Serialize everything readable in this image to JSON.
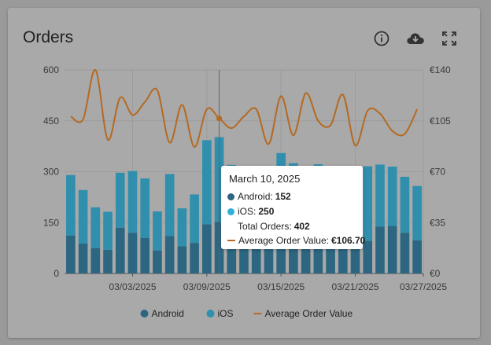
{
  "card": {
    "title": "Orders"
  },
  "icons": {
    "info": "info-icon",
    "download": "cloud-download-icon",
    "fullscreen": "fullscreen-icon"
  },
  "colors": {
    "android": "#2c6680",
    "ios": "#2f8fad",
    "aov": "#b46a22",
    "grid": "#9c9c9c",
    "axis_text": "#3a3a3a"
  },
  "chart_data": {
    "type": "bar",
    "x": [
      "2025-02-26",
      "2025-02-27",
      "2025-02-28",
      "2025-03-01",
      "2025-03-02",
      "2025-03-03",
      "2025-03-04",
      "2025-03-05",
      "2025-03-06",
      "2025-03-07",
      "2025-03-08",
      "2025-03-09",
      "2025-03-10",
      "2025-03-11",
      "2025-03-12",
      "2025-03-13",
      "2025-03-14",
      "2025-03-15",
      "2025-03-16",
      "2025-03-17",
      "2025-03-18",
      "2025-03-19",
      "2025-03-20",
      "2025-03-21",
      "2025-03-22",
      "2025-03-23",
      "2025-03-24",
      "2025-03-25",
      "2025-03-26"
    ],
    "x_tick_labels": [
      "03/03/2025",
      "03/09/2025",
      "03/15/2025",
      "03/21/2025",
      "03/27/2025"
    ],
    "y_left_ticks": [
      "600",
      "450",
      "300",
      "150",
      "0"
    ],
    "y_right_ticks": [
      "€140",
      "€105",
      "€70",
      "€35",
      "€0"
    ],
    "ylim_left": [
      0,
      600
    ],
    "ylim_right": [
      0,
      140
    ],
    "series": [
      {
        "name": "Android",
        "kind": "stacked-bar",
        "values": [
          112,
          88,
          75,
          70,
          135,
          120,
          105,
          68,
          110,
          80,
          90,
          145,
          152,
          110,
          100,
          95,
          92,
          105,
          120,
          98,
          118,
          92,
          104,
          90,
          96,
          138,
          140,
          120,
          98
        ]
      },
      {
        "name": "iOS",
        "kind": "stacked-bar",
        "values": [
          178,
          158,
          120,
          112,
          162,
          182,
          175,
          115,
          183,
          112,
          143,
          248,
          250,
          210,
          192,
          190,
          160,
          250,
          205,
          200,
          204,
          180,
          174,
          185,
          220,
          183,
          175,
          165,
          160
        ]
      },
      {
        "name": "Average Order Value",
        "kind": "line",
        "axis": "right",
        "values": [
          108,
          106,
          140,
          92,
          121,
          109,
          118,
          126,
          90,
          116,
          87,
          113,
          106.7,
          100,
          108,
          113,
          89,
          122,
          95,
          124,
          105,
          102,
          123,
          88,
          112,
          110,
          98,
          96,
          113
        ]
      }
    ],
    "legend": [
      "Android",
      "iOS",
      "Average Order Value"
    ],
    "legend_position": "bottom",
    "grid": true,
    "cursor_index": 12
  },
  "tooltip": {
    "date": "March 10, 2025",
    "android_label": "Android:",
    "android_value": "152",
    "ios_label": "iOS:",
    "ios_value": "250",
    "total_label": "Total Orders:",
    "total_value": "402",
    "aov_label": "Average Order Value:",
    "aov_value": "€106.70"
  }
}
